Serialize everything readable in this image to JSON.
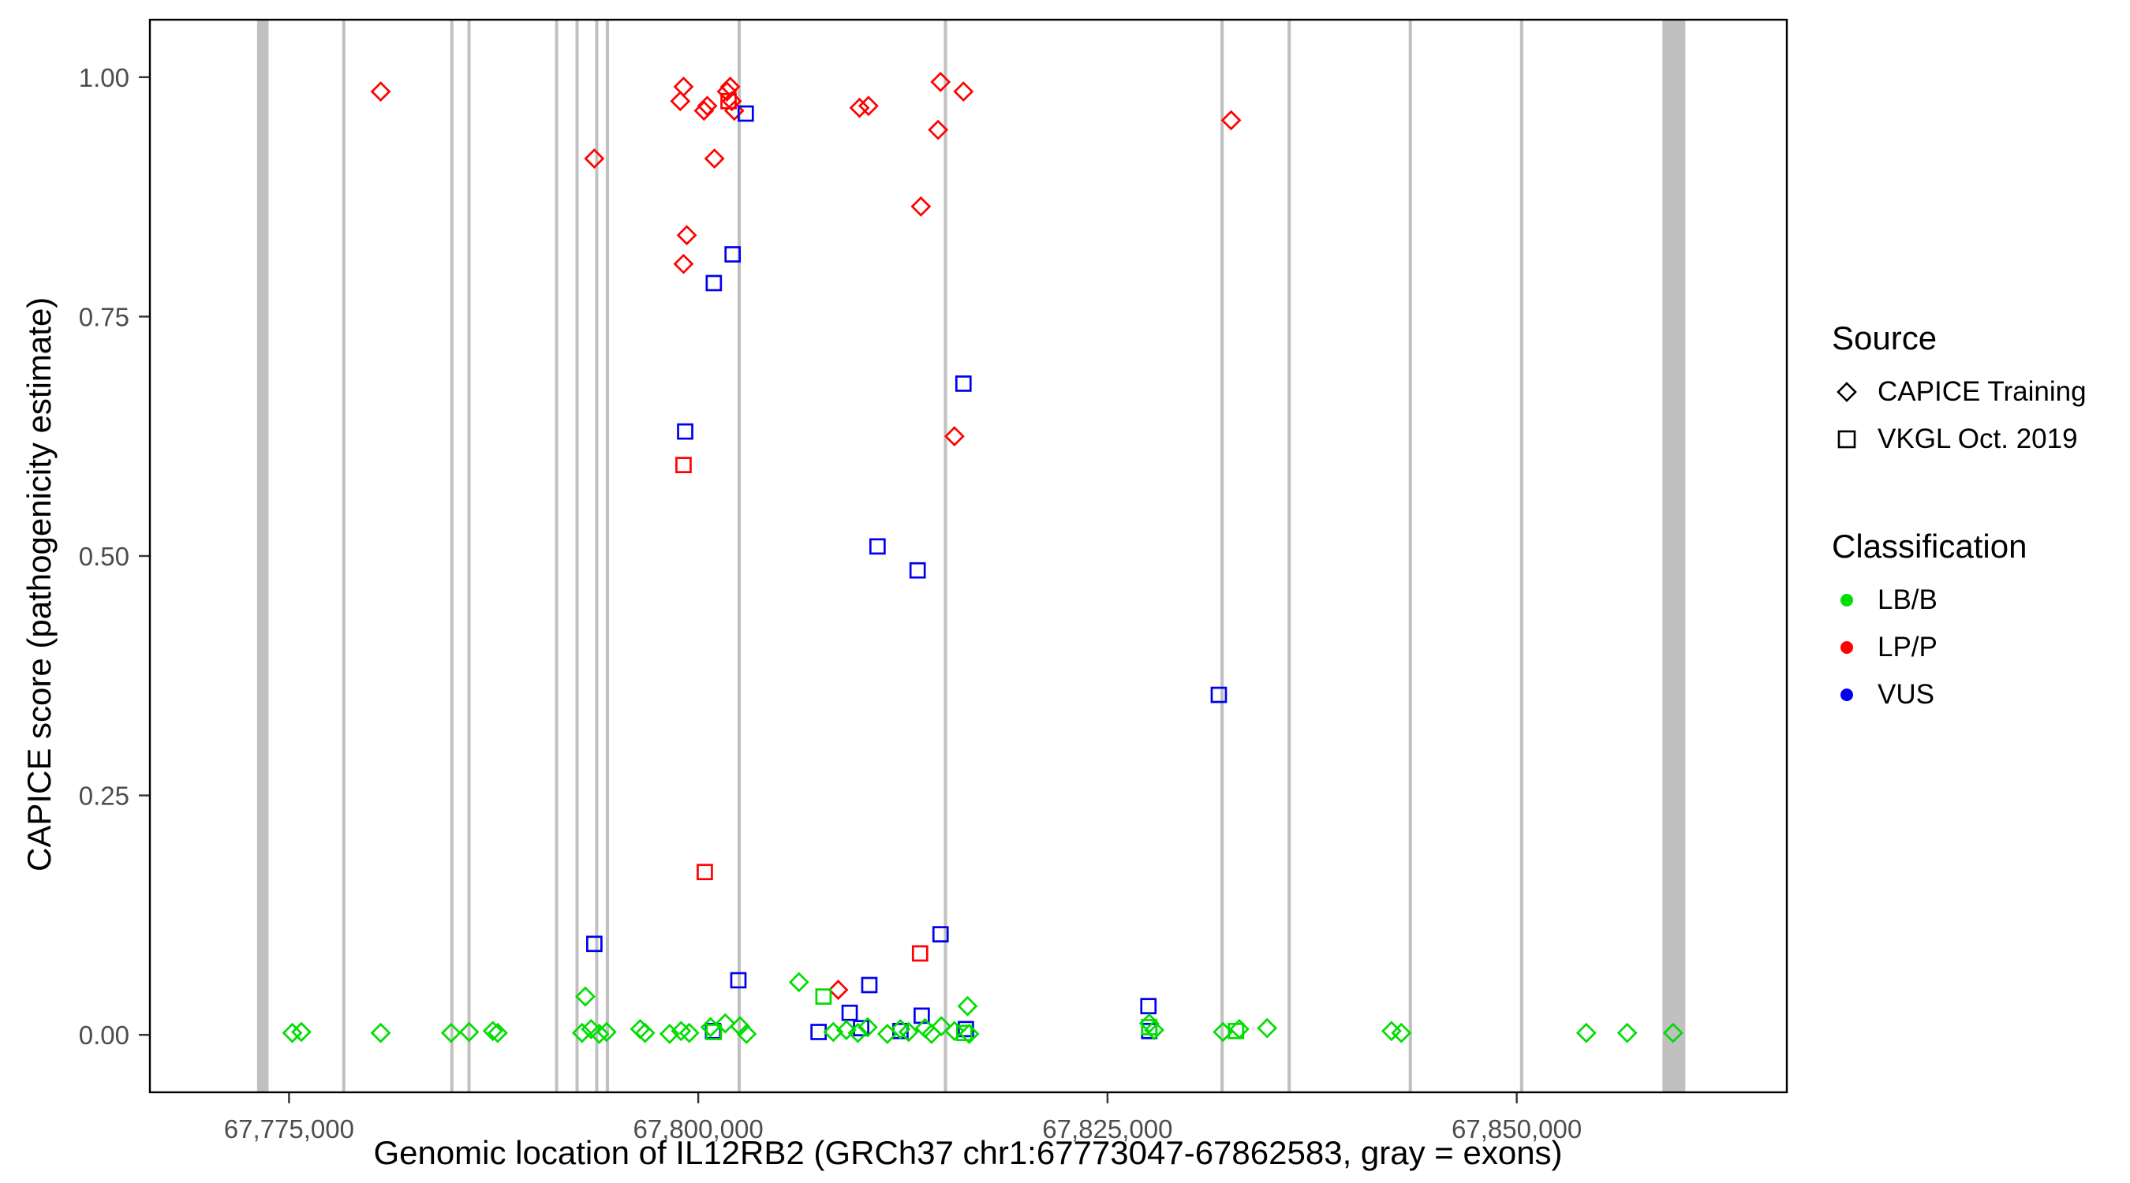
{
  "chart_data": {
    "type": "scatter",
    "title": "",
    "xlabel": "Genomic location of IL12RB2 (GRCh37 chr1:67773047-67862583, gray = exons)",
    "ylabel": "CAPICE score (pathogenicity estimate)",
    "xlim": [
      67766500,
      67866500
    ],
    "ylim": [
      -0.06,
      1.06
    ],
    "grid": "off",
    "legend_position": "right",
    "x_ticks": [
      {
        "value": 67775000,
        "label": "67,775,000"
      },
      {
        "value": 67800000,
        "label": "67,800,000"
      },
      {
        "value": 67825000,
        "label": "67,825,000"
      },
      {
        "value": 67850000,
        "label": "67,850,000"
      }
    ],
    "y_ticks": [
      {
        "value": 0.0,
        "label": "0.00"
      },
      {
        "value": 0.25,
        "label": "0.25"
      },
      {
        "value": 0.5,
        "label": "0.50"
      },
      {
        "value": 0.75,
        "label": "0.75"
      },
      {
        "value": 1.0,
        "label": "1.00"
      }
    ],
    "exon_color": "#C0C0C0",
    "exons": [
      [
        67773047,
        67773750
      ],
      [
        67778250,
        67778420
      ],
      [
        67784850,
        67785020
      ],
      [
        67785900,
        67786080
      ],
      [
        67791250,
        67791420
      ],
      [
        67792500,
        67792670
      ],
      [
        67793700,
        67793870
      ],
      [
        67794350,
        67794550
      ],
      [
        67802400,
        67802600
      ],
      [
        67815000,
        67815200
      ],
      [
        67831900,
        67832100
      ],
      [
        67836000,
        67836200
      ],
      [
        67843400,
        67843600
      ],
      [
        67850200,
        67850400
      ],
      [
        67858900,
        67860300
      ]
    ],
    "classification_colors": {
      "LB/B": "#00DD00",
      "LP/P": "#FF0000",
      "VUS": "#0000EE"
    },
    "shape_by_source": {
      "CAPICE Training": "diamond",
      "VKGL Oct. 2019": "square"
    },
    "legend": {
      "source_title": "Source",
      "source_items": [
        {
          "label": "CAPICE Training",
          "shape": "diamond"
        },
        {
          "label": "VKGL Oct. 2019",
          "shape": "square"
        }
      ],
      "classification_title": "Classification",
      "classification_items": [
        {
          "label": "LB/B",
          "color": "#00DD00"
        },
        {
          "label": "LP/P",
          "color": "#FF0000"
        },
        {
          "label": "VUS",
          "color": "#0000EE"
        }
      ]
    },
    "points_schema": [
      "x",
      "y",
      "source",
      "classification"
    ],
    "points": [
      [
        67780600,
        0.985,
        "CAPICE Training",
        "LP/P"
      ],
      [
        67793650,
        0.915,
        "CAPICE Training",
        "LP/P"
      ],
      [
        67798900,
        0.975,
        "CAPICE Training",
        "LP/P"
      ],
      [
        67799100,
        0.99,
        "CAPICE Training",
        "LP/P"
      ],
      [
        67800350,
        0.965,
        "CAPICE Training",
        "LP/P"
      ],
      [
        67800550,
        0.97,
        "CAPICE Training",
        "LP/P"
      ],
      [
        67800990,
        0.915,
        "CAPICE Training",
        "LP/P"
      ],
      [
        67801750,
        0.985,
        "CAPICE Training",
        "LP/P"
      ],
      [
        67801950,
        0.99,
        "CAPICE Training",
        "LP/P"
      ],
      [
        67802050,
        0.975,
        "CAPICE Training",
        "LP/P"
      ],
      [
        67802200,
        0.965,
        "CAPICE Training",
        "LP/P"
      ],
      [
        67799300,
        0.835,
        "CAPICE Training",
        "LP/P"
      ],
      [
        67799100,
        0.805,
        "CAPICE Training",
        "LP/P"
      ],
      [
        67809850,
        0.968,
        "CAPICE Training",
        "LP/P"
      ],
      [
        67810400,
        0.97,
        "CAPICE Training",
        "LP/P"
      ],
      [
        67813600,
        0.865,
        "CAPICE Training",
        "LP/P"
      ],
      [
        67814800,
        0.995,
        "CAPICE Training",
        "LP/P"
      ],
      [
        67814650,
        0.945,
        "CAPICE Training",
        "LP/P"
      ],
      [
        67816200,
        0.985,
        "CAPICE Training",
        "LP/P"
      ],
      [
        67815650,
        0.625,
        "CAPICE Training",
        "LP/P"
      ],
      [
        67832550,
        0.955,
        "CAPICE Training",
        "LP/P"
      ],
      [
        67808550,
        0.047,
        "CAPICE Training",
        "LP/P"
      ],
      [
        67801850,
        0.975,
        "VKGL Oct. 2019",
        "LP/P"
      ],
      [
        67799100,
        0.595,
        "VKGL Oct. 2019",
        "LP/P"
      ],
      [
        67800400,
        0.17,
        "VKGL Oct. 2019",
        "LP/P"
      ],
      [
        67813550,
        0.085,
        "VKGL Oct. 2019",
        "LP/P"
      ],
      [
        67802900,
        0.962,
        "VKGL Oct. 2019",
        "VUS"
      ],
      [
        67802100,
        0.815,
        "VKGL Oct. 2019",
        "VUS"
      ],
      [
        67800950,
        0.785,
        "VKGL Oct. 2019",
        "VUS"
      ],
      [
        67799200,
        0.63,
        "VKGL Oct. 2019",
        "VUS"
      ],
      [
        67816200,
        0.68,
        "VKGL Oct. 2019",
        "VUS"
      ],
      [
        67810950,
        0.51,
        "VKGL Oct. 2019",
        "VUS"
      ],
      [
        67813400,
        0.485,
        "VKGL Oct. 2019",
        "VUS"
      ],
      [
        67831800,
        0.355,
        "VKGL Oct. 2019",
        "VUS"
      ],
      [
        67793650,
        0.095,
        "VKGL Oct. 2019",
        "VUS"
      ],
      [
        67814800,
        0.105,
        "VKGL Oct. 2019",
        "VUS"
      ],
      [
        67802450,
        0.057,
        "VKGL Oct. 2019",
        "VUS"
      ],
      [
        67810450,
        0.052,
        "VKGL Oct. 2019",
        "VUS"
      ],
      [
        67809250,
        0.023,
        "VKGL Oct. 2019",
        "VUS"
      ],
      [
        67813650,
        0.02,
        "VKGL Oct. 2019",
        "VUS"
      ],
      [
        67827500,
        0.03,
        "VKGL Oct. 2019",
        "VUS"
      ],
      [
        67800900,
        0.004,
        "VKGL Oct. 2019",
        "VUS"
      ],
      [
        67807350,
        0.003,
        "VKGL Oct. 2019",
        "VUS"
      ],
      [
        67809950,
        0.007,
        "VKGL Oct. 2019",
        "VUS"
      ],
      [
        67812350,
        0.004,
        "VKGL Oct. 2019",
        "VUS"
      ],
      [
        67816350,
        0.006,
        "VKGL Oct. 2019",
        "VUS"
      ],
      [
        67827550,
        0.004,
        "VKGL Oct. 2019",
        "VUS"
      ],
      [
        67775200,
        0.002,
        "CAPICE Training",
        "LB/B"
      ],
      [
        67775750,
        0.003,
        "CAPICE Training",
        "LB/B"
      ],
      [
        67780600,
        0.002,
        "CAPICE Training",
        "LB/B"
      ],
      [
        67784900,
        0.002,
        "CAPICE Training",
        "LB/B"
      ],
      [
        67786000,
        0.003,
        "CAPICE Training",
        "LB/B"
      ],
      [
        67787450,
        0.004,
        "CAPICE Training",
        "LB/B"
      ],
      [
        67787750,
        0.002,
        "CAPICE Training",
        "LB/B"
      ],
      [
        67793100,
        0.04,
        "CAPICE Training",
        "LB/B"
      ],
      [
        67792900,
        0.002,
        "CAPICE Training",
        "LB/B"
      ],
      [
        67793450,
        0.006,
        "CAPICE Training",
        "LB/B"
      ],
      [
        67793950,
        0.001,
        "CAPICE Training",
        "LB/B"
      ],
      [
        67794400,
        0.003,
        "CAPICE Training",
        "LB/B"
      ],
      [
        67796450,
        0.006,
        "CAPICE Training",
        "LB/B"
      ],
      [
        67796750,
        0.002,
        "CAPICE Training",
        "LB/B"
      ],
      [
        67798250,
        0.001,
        "CAPICE Training",
        "LB/B"
      ],
      [
        67798950,
        0.004,
        "CAPICE Training",
        "LB/B"
      ],
      [
        67799450,
        0.002,
        "CAPICE Training",
        "LB/B"
      ],
      [
        67800750,
        0.008,
        "CAPICE Training",
        "LB/B"
      ],
      [
        67801650,
        0.012,
        "CAPICE Training",
        "LB/B"
      ],
      [
        67802550,
        0.009,
        "CAPICE Training",
        "LB/B"
      ],
      [
        67802950,
        0.001,
        "CAPICE Training",
        "LB/B"
      ],
      [
        67806150,
        0.055,
        "CAPICE Training",
        "LB/B"
      ],
      [
        67808250,
        0.003,
        "CAPICE Training",
        "LB/B"
      ],
      [
        67809050,
        0.005,
        "CAPICE Training",
        "LB/B"
      ],
      [
        67809750,
        0.002,
        "CAPICE Training",
        "LB/B"
      ],
      [
        67810350,
        0.008,
        "CAPICE Training",
        "LB/B"
      ],
      [
        67811550,
        0.001,
        "CAPICE Training",
        "LB/B"
      ],
      [
        67812350,
        0.006,
        "CAPICE Training",
        "LB/B"
      ],
      [
        67812850,
        0.003,
        "CAPICE Training",
        "LB/B"
      ],
      [
        67813850,
        0.007,
        "CAPICE Training",
        "LB/B"
      ],
      [
        67814250,
        0.001,
        "CAPICE Training",
        "LB/B"
      ],
      [
        67814850,
        0.009,
        "CAPICE Training",
        "LB/B"
      ],
      [
        67816450,
        0.03,
        "CAPICE Training",
        "LB/B"
      ],
      [
        67815650,
        0.004,
        "CAPICE Training",
        "LB/B"
      ],
      [
        67816550,
        0.001,
        "CAPICE Training",
        "LB/B"
      ],
      [
        67827550,
        0.012,
        "CAPICE Training",
        "LB/B"
      ],
      [
        67827850,
        0.005,
        "CAPICE Training",
        "LB/B"
      ],
      [
        67832050,
        0.003,
        "CAPICE Training",
        "LB/B"
      ],
      [
        67833050,
        0.006,
        "CAPICE Training",
        "LB/B"
      ],
      [
        67834750,
        0.007,
        "CAPICE Training",
        "LB/B"
      ],
      [
        67842350,
        0.004,
        "CAPICE Training",
        "LB/B"
      ],
      [
        67842950,
        0.002,
        "CAPICE Training",
        "LB/B"
      ],
      [
        67854250,
        0.002,
        "CAPICE Training",
        "LB/B"
      ],
      [
        67856750,
        0.002,
        "CAPICE Training",
        "LB/B"
      ],
      [
        67859550,
        0.002,
        "CAPICE Training",
        "LB/B"
      ],
      [
        67807650,
        0.04,
        "VKGL Oct. 2019",
        "LB/B"
      ],
      [
        67800950,
        0.003,
        "VKGL Oct. 2019",
        "LB/B"
      ],
      [
        67816250,
        0.002,
        "VKGL Oct. 2019",
        "LB/B"
      ],
      [
        67827550,
        0.008,
        "VKGL Oct. 2019",
        "LB/B"
      ],
      [
        67832850,
        0.004,
        "VKGL Oct. 2019",
        "LB/B"
      ]
    ]
  }
}
